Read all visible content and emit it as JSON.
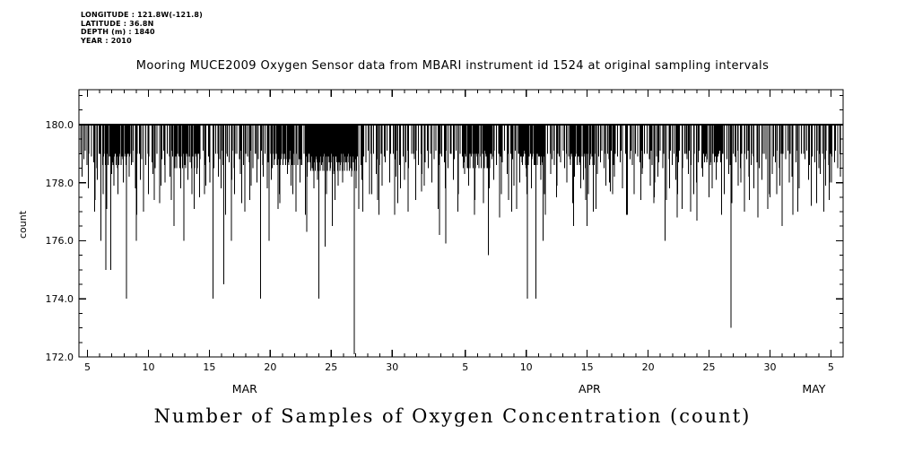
{
  "header": {
    "longitude": "LONGITUDE : 121.8W(-121.8)",
    "latitude": "LATITUDE : 36.8N",
    "depth": "DEPTH (m) : 1840",
    "year": "YEAR : 2010"
  },
  "title": "Mooring MUCE2009 Oxygen Sensor data from MBARI instrument id 1524 at original sampling intervals",
  "bottom_title": "Number of Samples of Oxygen Concentration (count)",
  "chart_data": {
    "type": "line",
    "style": "stem-spikes-hanging-from-baseline",
    "title": "Mooring MUCE2009 Oxygen Sensor data from MBARI instrument id 1524 at original sampling intervals",
    "xlabel": "",
    "ylabel": "count",
    "x_unit": "day of month (MAR-MAY 2010), day index counted from Mar 1",
    "ylim": [
      172,
      181.2
    ],
    "xlim_days": [
      4.3,
      67.0
    ],
    "baseline": 180,
    "grid": false,
    "y_major_ticks": [
      {
        "value": 172,
        "label": "172.0"
      },
      {
        "value": 174,
        "label": "174.0"
      },
      {
        "value": 176,
        "label": "176.0"
      },
      {
        "value": 178,
        "label": "178.0"
      },
      {
        "value": 180,
        "label": "180.0"
      }
    ],
    "y_minor_step": 0.5,
    "x_major_ticks": [
      {
        "day": 5,
        "label": "5"
      },
      {
        "day": 10,
        "label": "10"
      },
      {
        "day": 15,
        "label": "15"
      },
      {
        "day": 20,
        "label": "20"
      },
      {
        "day": 25,
        "label": "25"
      },
      {
        "day": 30,
        "label": "30"
      },
      {
        "day": 36,
        "label": "5"
      },
      {
        "day": 41,
        "label": "10"
      },
      {
        "day": 46,
        "label": "15"
      },
      {
        "day": 51,
        "label": "20"
      },
      {
        "day": 56,
        "label": "25"
      },
      {
        "day": 61,
        "label": "30"
      },
      {
        "day": 66,
        "label": "5"
      }
    ],
    "x_minor_step": 1,
    "month_labels": [
      {
        "label": "MAR",
        "day": 17.9
      },
      {
        "label": "APR",
        "day": 46.2
      },
      {
        "label": "MAY",
        "day": 64.6
      }
    ],
    "spikes": [
      [
        5.6,
        177
      ],
      [
        6.1,
        176
      ],
      [
        6.5,
        175
      ],
      [
        6.9,
        175
      ],
      [
        7.5,
        177.6
      ],
      [
        8.2,
        174
      ],
      [
        9.0,
        176
      ],
      [
        9.6,
        177
      ],
      [
        10.5,
        177.4
      ],
      [
        12.1,
        176.5
      ],
      [
        12.9,
        176
      ],
      [
        14.2,
        177.5
      ],
      [
        15.3,
        174
      ],
      [
        16.2,
        174.5
      ],
      [
        16.8,
        176
      ],
      [
        17.9,
        177
      ],
      [
        19.2,
        174
      ],
      [
        19.9,
        176
      ],
      [
        20.8,
        177.3
      ],
      [
        22.1,
        177
      ],
      [
        23.0,
        176.3
      ],
      [
        24.0,
        174
      ],
      [
        24.5,
        175.8
      ],
      [
        25.1,
        176.5
      ],
      [
        26.9,
        172.1
      ],
      [
        27.6,
        177
      ],
      [
        28.8,
        177.4
      ],
      [
        30.2,
        176.9
      ],
      [
        31.3,
        177
      ],
      [
        32.4,
        177.7
      ],
      [
        33.9,
        176.2
      ],
      [
        34.4,
        175.9
      ],
      [
        35.4,
        177
      ],
      [
        36.8,
        177.4
      ],
      [
        37.9,
        175.5
      ],
      [
        38.8,
        176.8
      ],
      [
        39.8,
        177
      ],
      [
        41.1,
        174
      ],
      [
        41.8,
        174
      ],
      [
        42.4,
        176
      ],
      [
        43.5,
        177.5
      ],
      [
        44.9,
        176.5
      ],
      [
        46.0,
        176.5
      ],
      [
        46.5,
        177
      ],
      [
        47.9,
        177.7
      ],
      [
        49.3,
        176.9
      ],
      [
        50.4,
        177.4
      ],
      [
        51.5,
        177.5
      ],
      [
        52.4,
        176
      ],
      [
        53.4,
        176.8
      ],
      [
        54.5,
        177
      ],
      [
        55.0,
        176.7
      ],
      [
        56.0,
        177.5
      ],
      [
        57.8,
        173
      ],
      [
        58.9,
        177
      ],
      [
        60.0,
        176.8
      ],
      [
        61.0,
        177.5
      ],
      [
        62.0,
        176.5
      ],
      [
        63.3,
        177
      ],
      [
        64.4,
        177.2
      ],
      [
        65.4,
        177
      ],
      [
        65.9,
        178
      ]
    ],
    "combs": [
      {
        "start": 4.5,
        "end": 66.8,
        "step": 0.16,
        "cycle": [
          179,
          178.8,
          179.1,
          178.6,
          179,
          178.9,
          178.7,
          179.1,
          178.5,
          179
        ]
      },
      {
        "start": 4.7,
        "end": 66.6,
        "step": 0.52,
        "cycle": [
          178.2,
          177.8,
          178.1,
          177.6,
          178.3,
          177.9,
          178.0
        ]
      },
      {
        "start": 5.2,
        "end": 66.2,
        "step": 1.35,
        "cycle": [
          177.4,
          177.1,
          177.6,
          176.9,
          177.3
        ]
      }
    ],
    "dense_segments": [
      {
        "start": 23.2,
        "end": 27.2,
        "step": 0.05,
        "cycle": [
          179,
          178.7,
          178.4,
          178.9
        ]
      },
      {
        "start": 6.0,
        "end": 8.6,
        "step": 0.07,
        "cycle": [
          179,
          178.6,
          178.9
        ]
      },
      {
        "start": 12.0,
        "end": 14.1,
        "step": 0.08,
        "cycle": [
          178.9,
          178.5,
          179
        ]
      },
      {
        "start": 20.0,
        "end": 22.6,
        "step": 0.08,
        "cycle": [
          179,
          178.6,
          178.8
        ]
      },
      {
        "start": 35.8,
        "end": 38.2,
        "step": 0.08,
        "cycle": [
          178.9,
          178.5,
          179
        ]
      },
      {
        "start": 40.4,
        "end": 42.6,
        "step": 0.08,
        "cycle": [
          179,
          178.6,
          178.9
        ]
      },
      {
        "start": 44.5,
        "end": 46.5,
        "step": 0.09,
        "cycle": [
          178.9,
          178.6,
          179
        ]
      },
      {
        "start": 55.5,
        "end": 57.2,
        "step": 0.09,
        "cycle": [
          179,
          178.7,
          178.9
        ]
      }
    ],
    "colors": {
      "line": "#000000",
      "background": "#ffffff"
    }
  }
}
